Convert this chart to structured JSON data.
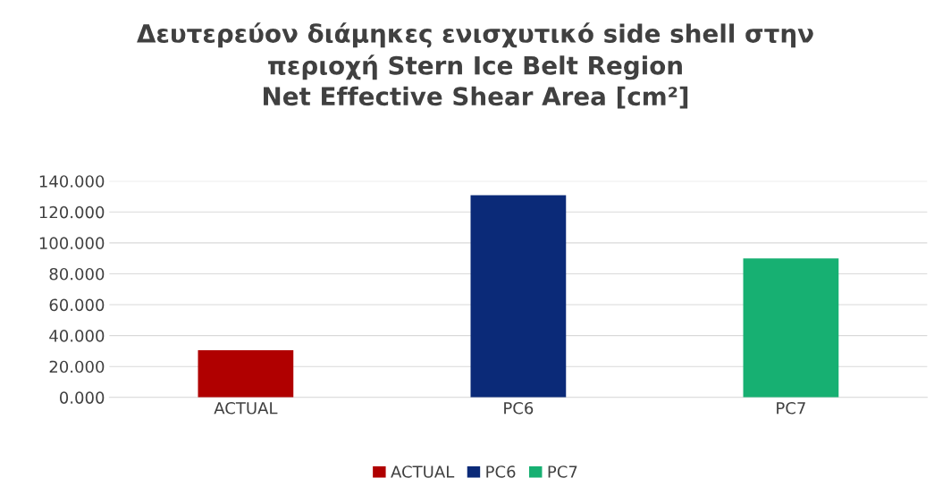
{
  "chart_data": {
    "type": "bar",
    "title": "Δευτερεύον διάμηκες ενισχυτικό side shell στην\nπεριοχή Stern Ice Belt Region\nNet Effective Shear Area [cm²]",
    "categories": [
      "ACTUAL",
      "PC6",
      "PC7"
    ],
    "series": [
      {
        "name": "ACTUAL",
        "color": "#b00000",
        "values": [
          30.5,
          null,
          null
        ]
      },
      {
        "name": "PC6",
        "color": "#0b2a78",
        "values": [
          null,
          130.8,
          null
        ]
      },
      {
        "name": "PC7",
        "color": "#17b072",
        "values": [
          null,
          null,
          89.9
        ]
      }
    ],
    "ylim": [
      0,
      140
    ],
    "yticks": [
      {
        "value": 0,
        "label": "0.000"
      },
      {
        "value": 20,
        "label": "20.000"
      },
      {
        "value": 40,
        "label": "40.000"
      },
      {
        "value": 60,
        "label": "60.000"
      },
      {
        "value": 80,
        "label": "80.000"
      },
      {
        "value": 100,
        "label": "100.000"
      },
      {
        "value": 120,
        "label": "120.000"
      },
      {
        "value": 140,
        "label": "140.000"
      }
    ],
    "grid": "y",
    "legend": "bottom"
  }
}
